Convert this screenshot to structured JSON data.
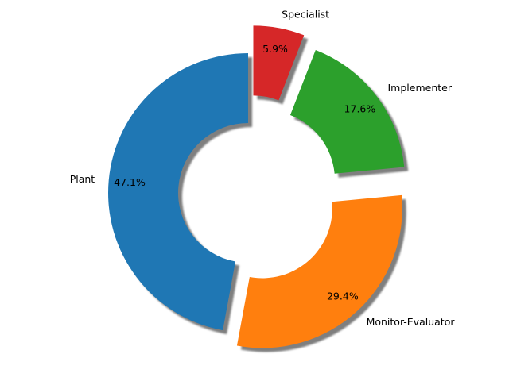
{
  "chart_data": {
    "type": "pie",
    "style": "donut",
    "shadow": true,
    "exploded": true,
    "categories": [
      "Plant",
      "Monitor-Evaluator",
      "Implementer",
      "Specialist"
    ],
    "values": [
      47.1,
      29.4,
      17.6,
      5.9
    ],
    "percent_labels": [
      "47.1%",
      "29.4%",
      "17.6%",
      "5.9%"
    ],
    "colors": [
      "#1f77b4",
      "#ff7f0e",
      "#2ca02c",
      "#d62728"
    ],
    "title": "",
    "legend": "none"
  }
}
